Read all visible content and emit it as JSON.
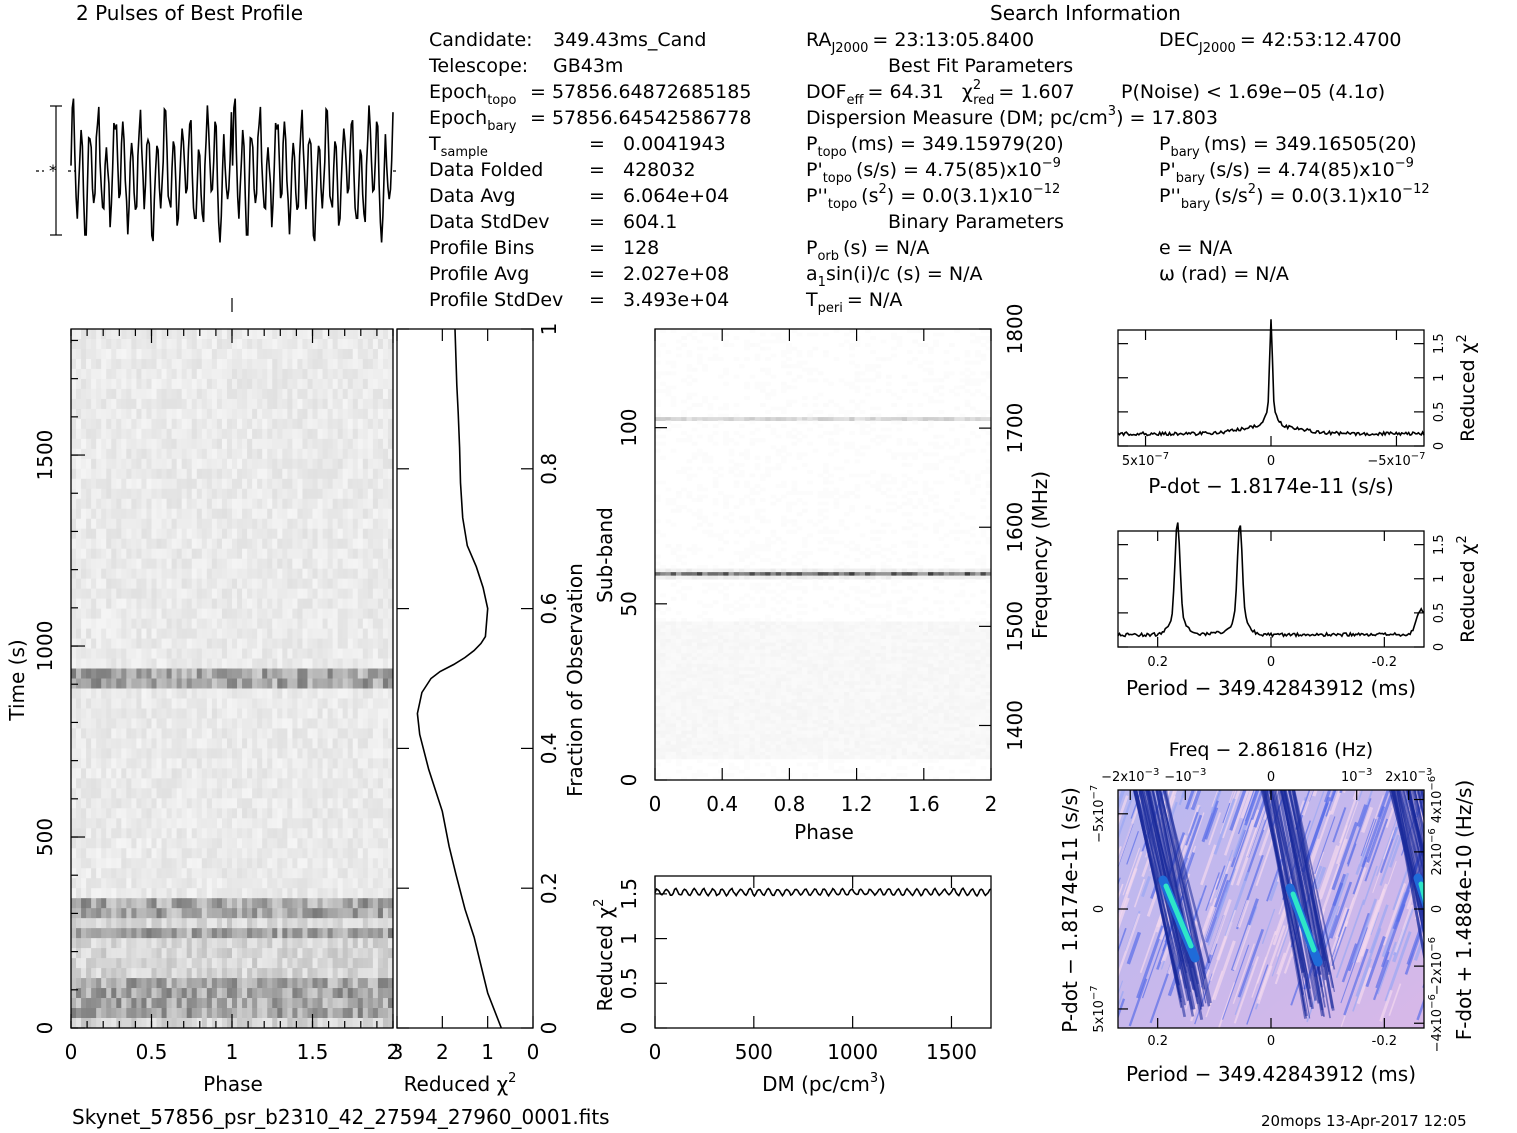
{
  "header": {
    "profile_title": "2 Pulses of Best Profile",
    "search_title": "Search Information",
    "filename": "Skynet_57856_psr_b2310_42_27594_27960_0001.fits",
    "stamp": "20mops 13-Apr-2017 12:05"
  },
  "info_left": [
    {
      "label": "Candidate:",
      "sub": "",
      "eq": "",
      "value": "349.43ms_Cand"
    },
    {
      "label": "Telescope:",
      "sub": "",
      "eq": "",
      "value": "GB43m"
    },
    {
      "label": "Epoch",
      "sub": "topo",
      "eq": "=",
      "value": "57856.64872685185"
    },
    {
      "label": "Epoch",
      "sub": "bary",
      "eq": "=",
      "value": "57856.64542586778"
    },
    {
      "label": "T",
      "sub": "sample",
      "eq": "=",
      "value": "0.0041943"
    },
    {
      "label": "Data Folded",
      "sub": "",
      "eq": "=",
      "value": "428032"
    },
    {
      "label": "Data Avg",
      "sub": "",
      "eq": "=",
      "value": "6.064e+04"
    },
    {
      "label": "Data StdDev",
      "sub": "",
      "eq": "=",
      "value": "604.1"
    },
    {
      "label": "Profile Bins",
      "sub": "",
      "eq": "=",
      "value": "128"
    },
    {
      "label": "Profile Avg",
      "sub": "",
      "eq": "=",
      "value": "2.027e+08"
    },
    {
      "label": "Profile StdDev",
      "sub": "",
      "eq": "=",
      "value": "3.493e+04"
    }
  ],
  "search": {
    "ra_label": "RA",
    "ra_sub": "J2000",
    "ra_value": "= 23:13:05.8400",
    "dec_label": "DEC",
    "dec_sub": "J2000",
    "dec_value": "= 42:53:12.4700",
    "best_fit_title": "Best Fit Parameters",
    "dof_label": "DOF",
    "dof_sub": "eff",
    "dof_value": "= 64.31",
    "chi_label": "χ",
    "chi_sup": "2",
    "chi_sub": "red",
    "chi_value": "= 1.607",
    "pnoise": "P(Noise) < 1.69e−05   (4.1σ)",
    "dm_text": "Dispersion Measure (DM; pc/cm",
    "dm_sup": "3",
    "dm_value": ") = 17.803",
    "ptopo_label": "P",
    "ptopo_sub": "topo",
    "ptopo_value": "(ms) =   349.15979(20)",
    "pbary_label": "P",
    "pbary_sub": "bary",
    "pbary_value": "(ms) =   349.16505(20)",
    "pdtopo_label": "P'",
    "pdtopo_sub": "topo",
    "pdtopo_value": "(s/s) =   4.75(85)x10",
    "pdtopo_exp": "−9",
    "pdbary_label": "P'",
    "pdbary_sub": "bary",
    "pdbary_value": "(s/s) =   4.74(85)x10",
    "pdbary_exp": "−9",
    "pddtopo_label": "P''",
    "pddtopo_sub": "topo",
    "pddtopo_value": "(s",
    "pddtopo_sup2": "2",
    "pddtopo_rest": ") = 0.0(3.1)x10",
    "pddtopo_exp": "−12",
    "pddbary_label": "P''",
    "pddbary_sub": "bary",
    "pddbary_value": "(s/s",
    "pddbary_sup2": "2",
    "pddbary_rest": ") = 0.0(3.1)x10",
    "pddbary_exp": "−12",
    "binary_title": "Binary Parameters",
    "porb_label": "P",
    "porb_sub": "orb",
    "porb_value": "(s) = N/A",
    "ecc": "e = N/A",
    "a1": "a",
    "a1_sub": "1",
    "a1_value": "sin(i)/c (s) = N/A",
    "omega": "ω (rad) = N/A",
    "tperi_label": "T",
    "tperi_sub": "peri",
    "tperi_value": "= N/A"
  },
  "chart_data": [
    {
      "type": "line",
      "name_key": "pulse_profile",
      "title": "2 Pulses of Best Profile",
      "x_range": [
        0,
        2
      ],
      "bins": 128,
      "note": "two repeated cycles of the 128-bin profile"
    },
    {
      "type": "heatmap",
      "xlabel": "Phase",
      "ylabel": "Time (s)",
      "xlim": [
        0,
        2
      ],
      "ylim": [
        0,
        1830
      ],
      "x_ticks": [
        0,
        0.5,
        1,
        1.5,
        2
      ],
      "y_ticks": [
        0,
        500,
        1000,
        1500
      ],
      "dark_rows_time_s": [
        35,
        60,
        85,
        110,
        250,
        290,
        330,
        900,
        940
      ]
    },
    {
      "type": "line",
      "xlabel": "Reduced χ",
      "xlabel_sup": "2",
      "ylabel": "Fraction of Observation",
      "xlim": [
        3,
        0
      ],
      "ylim": [
        0,
        1
      ],
      "x_ticks": [
        3,
        2,
        1,
        0
      ],
      "y_ticks": [
        0,
        0.2,
        0.4,
        0.6,
        0.8,
        1
      ],
      "x": [
        0.7,
        1.0,
        1.15,
        1.3,
        1.5,
        1.7,
        1.85,
        2.0,
        2.3,
        2.5,
        2.55,
        2.45,
        2.25,
        2.05,
        1.75,
        1.5,
        1.3,
        1.15,
        1.05,
        1.0,
        1.1,
        1.25,
        1.45,
        1.55,
        1.6,
        1.62,
        1.65,
        1.68,
        1.7,
        1.72
      ],
      "y": [
        0.0,
        0.05,
        0.09,
        0.13,
        0.17,
        0.22,
        0.26,
        0.31,
        0.37,
        0.42,
        0.45,
        0.48,
        0.5,
        0.51,
        0.52,
        0.53,
        0.54,
        0.55,
        0.56,
        0.6,
        0.63,
        0.66,
        0.69,
        0.73,
        0.78,
        0.83,
        0.88,
        0.92,
        0.96,
        1.0
      ]
    },
    {
      "type": "heatmap",
      "xlabel": "Phase",
      "ylabel": "Sub-band",
      "ylabel_right": "Frequency (MHz)",
      "xlim": [
        0,
        2
      ],
      "ylim": [
        0,
        128
      ],
      "x_ticks": [
        0,
        0.4,
        0.8,
        1.2,
        1.6,
        2
      ],
      "y_ticks": [
        0,
        50,
        100
      ],
      "y2_ticks": [
        1400,
        1500,
        1600,
        1700,
        1800
      ],
      "bright_subbands": [
        58,
        102
      ]
    },
    {
      "type": "line",
      "xlabel": "DM (pc/cm",
      "xlabel_sup": "3",
      "xlabel_end": ")",
      "ylabel": "Reduced χ",
      "ylabel_sup": "2",
      "xlim": [
        0,
        1700
      ],
      "ylim": [
        0,
        1.7
      ],
      "x_ticks": [
        0,
        500,
        1000,
        1500
      ],
      "y_ticks": [
        0,
        0.5,
        1,
        1.5
      ],
      "mean_value": 1.52,
      "ripple": 0.035
    },
    {
      "type": "line",
      "xlabel": "P-dot − 1.8174e-11 (s/s)",
      "ylabel": "Reduced χ",
      "ylabel_sup": "2",
      "xlim": [
        6e-07,
        -6e-07
      ],
      "ylim": [
        0,
        1.7
      ],
      "x_ticks": [
        "5x10",
        "0",
        "−5x10"
      ],
      "x_ticks_exp": [
        "−7",
        "",
        "−7"
      ],
      "y_ticks": [
        0,
        0.5,
        1,
        1.5
      ],
      "peak_x": 0.0,
      "peak_value": 1.6,
      "baseline": 0.18
    },
    {
      "type": "line",
      "xlabel": "Period − 349.42843912 (ms)",
      "ylabel": "Reduced χ",
      "ylabel_sup": "2",
      "xlim": [
        0.27,
        -0.27
      ],
      "ylim": [
        0,
        1.7
      ],
      "x_ticks": [
        0.2,
        0,
        -0.2
      ],
      "y_ticks": [
        0,
        0.5,
        1,
        1.5
      ],
      "peaks_x": [
        0.165,
        0.1,
        0.055,
        -0.265
      ],
      "peaks_value": [
        1.6,
        0.2,
        1.55,
        0.55
      ],
      "baseline": 0.18
    },
    {
      "type": "heatmap",
      "title": "Freq − 2.861816 (Hz)",
      "xlabel": "Period − 349.42843912 (ms)",
      "ylabel": "P-dot − 1.8174e-11 (s/s)",
      "ylabel_right": "F-dot + 1.4884e-10 (Hz/s)",
      "x_ticks": [
        0.2,
        0,
        -0.2
      ],
      "top_ticks": [
        "−2x10",
        "−10",
        "0",
        "10",
        "2x10"
      ],
      "top_ticks_exp": [
        "−3",
        "−3",
        "",
        "−3",
        "−3"
      ],
      "y_ticks": [
        "5x10",
        "0",
        "−5x10"
      ],
      "y_ticks_exp": [
        "−7",
        "",
        "−7"
      ],
      "y2_ticks": [
        "−4x10",
        "−2x10",
        "0",
        "2x10",
        "4x10"
      ],
      "y2_ticks_exp": [
        "−6",
        "−6",
        "",
        "−6",
        "−6"
      ],
      "colors": {
        "low": "#f4d8ee",
        "mid": "#5a6ee8",
        "high": "#1a2a9a",
        "peak": "#2ee6c8"
      }
    }
  ]
}
